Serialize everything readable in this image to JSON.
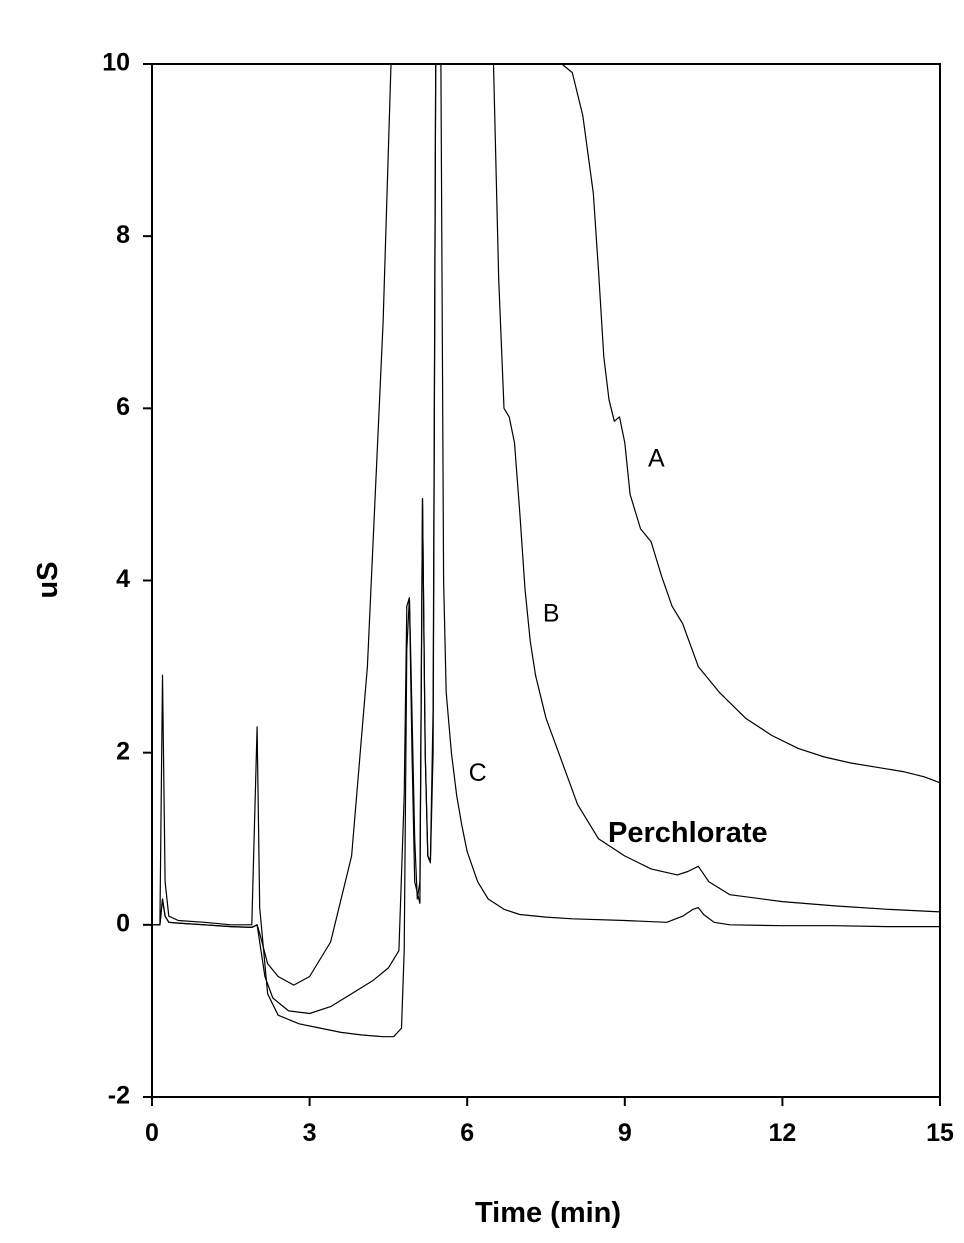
{
  "chart_data": {
    "type": "line",
    "title": "",
    "xlabel": "Time (min)",
    "ylabel": "uS",
    "xlim": [
      0,
      15
    ],
    "ylim": [
      -2,
      10
    ],
    "xticks": [
      0,
      3,
      6,
      9,
      12,
      15
    ],
    "yticks": [
      -2,
      0,
      2,
      4,
      6,
      8,
      10
    ],
    "xtick_labels": [
      "0",
      "3",
      "6",
      "9",
      "12",
      "15"
    ],
    "ytick_labels": [
      "-2",
      "0",
      "2",
      "4",
      "6",
      "8",
      "10"
    ],
    "grid": false,
    "legend": "none",
    "series": [
      {
        "name": "A",
        "label_at": [
          9.6,
          5.4
        ],
        "x": [
          0,
          0.15,
          0.2,
          0.25,
          0.32,
          0.5,
          1.0,
          1.5,
          1.9,
          2.0,
          2.05,
          2.2,
          2.4,
          2.7,
          3.0,
          3.4,
          3.8,
          4.1,
          4.4,
          4.55,
          4.6,
          6.5,
          6.7,
          7.0,
          7.2,
          7.4,
          7.6,
          7.8,
          8.0,
          8.2,
          8.4,
          8.5,
          8.6,
          8.7,
          8.8,
          8.9,
          9.0,
          9.1,
          9.3,
          9.5,
          9.7,
          9.9,
          10.1,
          10.4,
          10.8,
          11.3,
          11.8,
          12.3,
          12.8,
          13.3,
          13.8,
          14.3,
          14.7,
          15.0
        ],
        "y": [
          0,
          0,
          0.3,
          0.1,
          0.03,
          0.02,
          0.0,
          -0.02,
          -0.03,
          0.0,
          -0.1,
          -0.45,
          -0.6,
          -0.7,
          -0.6,
          -0.2,
          0.8,
          3.0,
          7.0,
          10.0,
          10.0,
          10.0,
          10.0,
          10.0,
          10.0,
          10.0,
          10.0,
          10.0,
          9.9,
          9.4,
          8.5,
          7.6,
          6.6,
          6.1,
          5.85,
          5.9,
          5.6,
          5.0,
          4.6,
          4.45,
          4.05,
          3.7,
          3.5,
          3.0,
          2.7,
          2.4,
          2.2,
          2.05,
          1.95,
          1.88,
          1.83,
          1.78,
          1.72,
          1.65
        ]
      },
      {
        "name": "B",
        "label_at": [
          7.6,
          3.6
        ],
        "x": [
          0,
          0.15,
          0.2,
          0.25,
          0.32,
          0.5,
          1.0,
          1.5,
          1.9,
          2.0,
          2.05,
          2.15,
          2.3,
          2.6,
          3.0,
          3.4,
          3.8,
          4.2,
          4.5,
          4.7,
          4.8,
          4.85,
          4.9,
          4.93,
          5.0,
          5.05,
          5.1,
          5.15,
          5.2,
          5.25,
          5.3,
          5.35,
          5.4,
          5.5,
          6.5,
          6.6,
          6.7,
          6.8,
          6.9,
          7.0,
          7.1,
          7.2,
          7.3,
          7.5,
          7.8,
          8.1,
          8.5,
          9.0,
          9.5,
          10.0,
          10.2,
          10.4,
          10.6,
          11.0,
          12.0,
          13.0,
          14.0,
          15.0
        ],
        "y": [
          0,
          0,
          0.3,
          0.1,
          0.03,
          0.02,
          0.0,
          -0.02,
          -0.03,
          0.0,
          -0.2,
          -0.6,
          -0.85,
          -1.0,
          -1.03,
          -0.95,
          -0.8,
          -0.65,
          -0.5,
          -0.3,
          1.5,
          3.7,
          3.8,
          3.0,
          1.0,
          0.3,
          0.5,
          4.95,
          2.0,
          0.8,
          0.72,
          2.0,
          10.0,
          10.0,
          10.0,
          7.5,
          6.0,
          5.9,
          5.6,
          4.8,
          3.9,
          3.3,
          2.9,
          2.4,
          1.9,
          1.4,
          1.0,
          0.8,
          0.65,
          0.58,
          0.62,
          0.68,
          0.5,
          0.35,
          0.27,
          0.22,
          0.18,
          0.15
        ]
      },
      {
        "name": "C",
        "label_at": [
          6.2,
          1.75
        ],
        "x": [
          0,
          0.15,
          0.2,
          0.25,
          0.32,
          0.5,
          1.0,
          1.5,
          1.9,
          2.0,
          2.05,
          2.2,
          2.4,
          2.8,
          3.2,
          3.6,
          4.0,
          4.4,
          4.6,
          4.75,
          4.8,
          4.85,
          4.9,
          4.95,
          5.0,
          5.1,
          5.15,
          5.2,
          5.25,
          5.3,
          5.35,
          5.4,
          5.5,
          5.55,
          5.6,
          5.7,
          5.8,
          5.9,
          6.0,
          6.2,
          6.4,
          6.7,
          7.0,
          7.5,
          8.0,
          9.0,
          9.8,
          10.1,
          10.3,
          10.4,
          10.5,
          10.7,
          11.0,
          12.0,
          13.0,
          14.0,
          15.0
        ],
        "y": [
          0,
          0,
          2.9,
          0.5,
          0.1,
          0.05,
          0.03,
          0.0,
          0.0,
          2.3,
          0.2,
          -0.8,
          -1.05,
          -1.15,
          -1.2,
          -1.25,
          -1.28,
          -1.3,
          -1.3,
          -1.2,
          -0.3,
          3.2,
          3.8,
          2.0,
          0.5,
          0.25,
          4.95,
          2.0,
          0.8,
          0.75,
          2.5,
          10.0,
          10.0,
          4.0,
          2.7,
          2.0,
          1.5,
          1.15,
          0.85,
          0.5,
          0.3,
          0.18,
          0.12,
          0.09,
          0.07,
          0.05,
          0.03,
          0.1,
          0.18,
          0.2,
          0.12,
          0.03,
          0.0,
          -0.01,
          -0.01,
          -0.02,
          -0.02
        ]
      }
    ],
    "annotations": [
      {
        "text": "Perchlorate",
        "at": [
          10.2,
          1.05
        ]
      }
    ]
  }
}
